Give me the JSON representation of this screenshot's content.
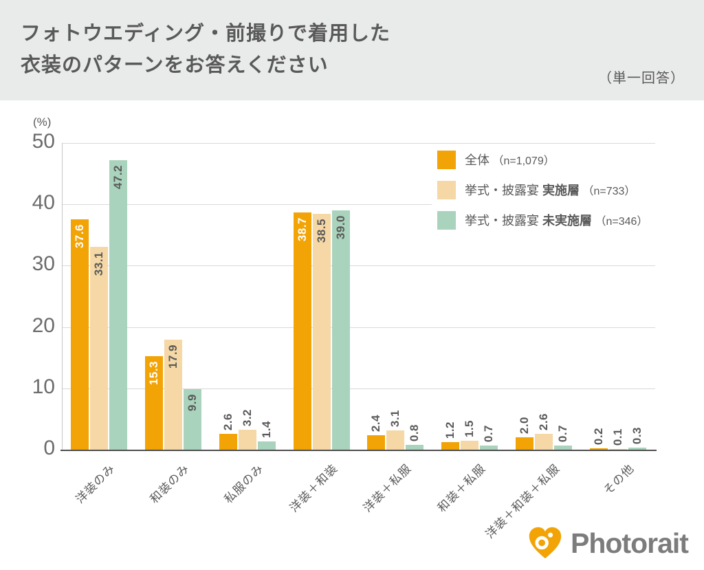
{
  "header": {
    "title_line1": "フォトウエディング・前撮りで着用した",
    "title_line2": "衣装のパターンをお答えください",
    "answer_type": "（単一回答）"
  },
  "chart_data": {
    "type": "bar",
    "title": "フォトウエディング・前撮りで着用した衣装のパターンをお答えください",
    "subtitle": "（単一回答）",
    "unit_label": "(%)",
    "ylabel": "(%)",
    "ylim": [
      0,
      50
    ],
    "yticks": [
      0,
      10,
      20,
      30,
      40,
      50
    ],
    "grid": true,
    "legend_position": "top-right",
    "categories": [
      "洋装のみ",
      "和装のみ",
      "私服のみ",
      "洋装＋和装",
      "洋装＋私服",
      "和装＋私服",
      "洋装＋和装＋私服",
      "その他"
    ],
    "series": [
      {
        "name": "全体",
        "name_bold": "",
        "n_label": "（n=1,079）",
        "color": "#F2A305",
        "inside_label_color": "#FFFFFF",
        "values": [
          37.6,
          15.3,
          2.6,
          38.7,
          2.4,
          1.2,
          2.0,
          0.2
        ]
      },
      {
        "name": "挙式・披露宴 ",
        "name_bold": "実施層",
        "n_label": "（n=733）",
        "color": "#F5D8A5",
        "inside_label_color": "#595959",
        "values": [
          33.1,
          17.9,
          3.2,
          38.5,
          3.1,
          1.5,
          2.6,
          0.1
        ]
      },
      {
        "name": "挙式・披露宴 ",
        "name_bold": "未実施層",
        "n_label": "（n=346）",
        "color": "#A9D3BC",
        "inside_label_color": "#595959",
        "values": [
          47.2,
          9.9,
          1.4,
          39.0,
          0.8,
          0.7,
          0.7,
          0.3
        ]
      }
    ],
    "outside_label_color": "#595959"
  },
  "footer": {
    "brand": "Photorait"
  }
}
